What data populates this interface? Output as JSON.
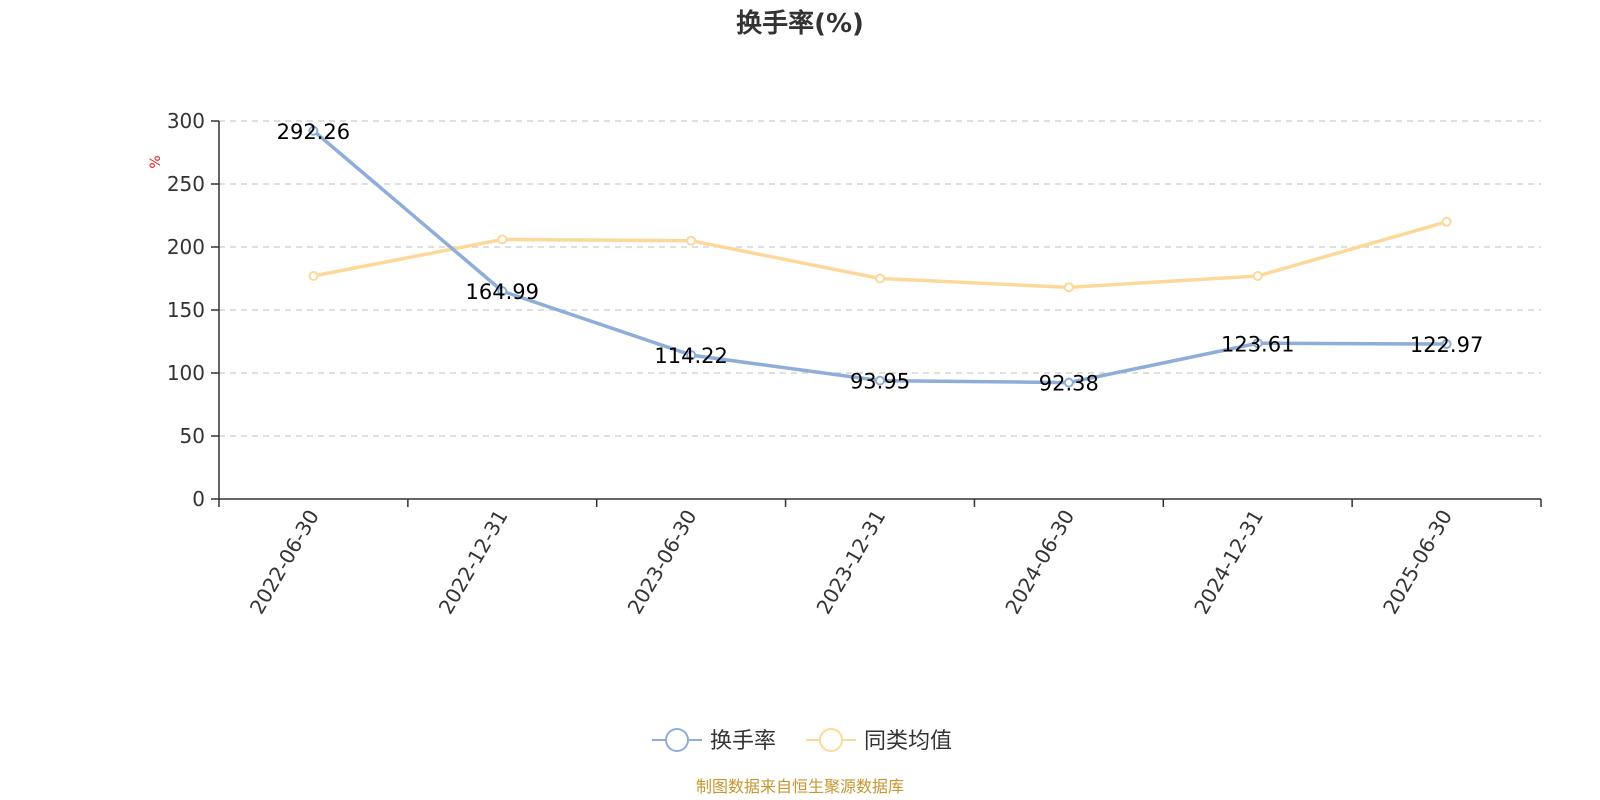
{
  "chart_data": {
    "type": "line",
    "title": "换手率(%)",
    "ylabel": "%",
    "ylim": [
      0,
      300
    ],
    "yticks": [
      0,
      50,
      100,
      150,
      200,
      250,
      300
    ],
    "categories": [
      "2022-06-30",
      "2022-12-31",
      "2023-06-30",
      "2023-12-31",
      "2024-06-30",
      "2024-12-31",
      "2025-06-30"
    ],
    "series": [
      {
        "name": "换手率",
        "color": "#8eadd8",
        "values": [
          292.26,
          164.99,
          114.22,
          93.95,
          92.38,
          123.61,
          122.97
        ],
        "data_labels": [
          "292.26",
          "164.99",
          "114.22",
          "93.95",
          "92.38",
          "123.61",
          "122.97"
        ]
      },
      {
        "name": "同类均值",
        "color": "#fcd99a",
        "values": [
          177,
          206,
          205,
          175,
          168,
          177,
          220
        ]
      }
    ],
    "grid": true,
    "legend": "bottom-center"
  },
  "source": "制图数据来自恒生聚源数据库",
  "colors": {
    "unit": "#e02020",
    "source": "#c8962e",
    "axis": "#333333",
    "grid": "#cccccc"
  }
}
